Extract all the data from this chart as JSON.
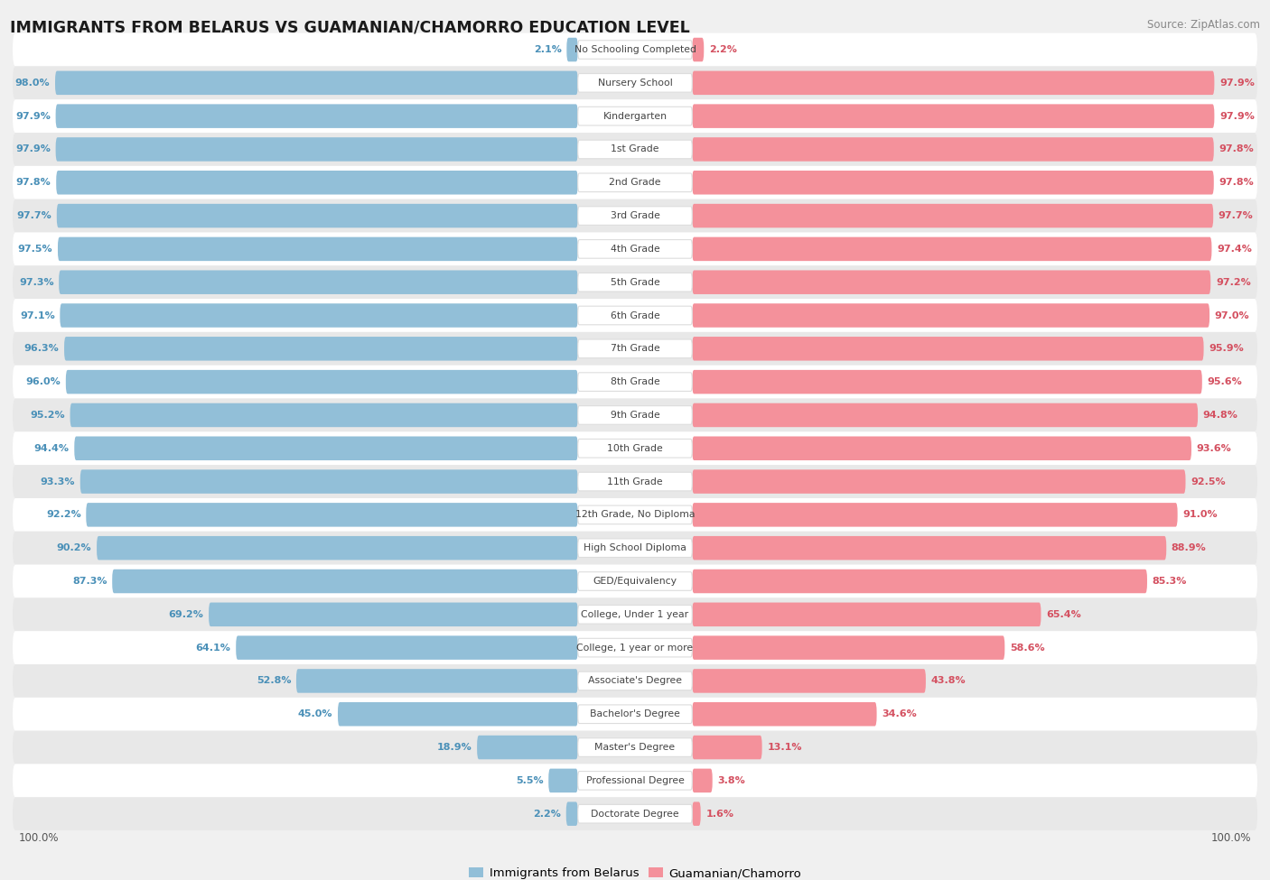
{
  "title": "IMMIGRANTS FROM BELARUS VS GUAMANIAN/CHAMORRO EDUCATION LEVEL",
  "source": "Source: ZipAtlas.com",
  "categories": [
    "No Schooling Completed",
    "Nursery School",
    "Kindergarten",
    "1st Grade",
    "2nd Grade",
    "3rd Grade",
    "4th Grade",
    "5th Grade",
    "6th Grade",
    "7th Grade",
    "8th Grade",
    "9th Grade",
    "10th Grade",
    "11th Grade",
    "12th Grade, No Diploma",
    "High School Diploma",
    "GED/Equivalency",
    "College, Under 1 year",
    "College, 1 year or more",
    "Associate's Degree",
    "Bachelor's Degree",
    "Master's Degree",
    "Professional Degree",
    "Doctorate Degree"
  ],
  "belarus_values": [
    2.1,
    98.0,
    97.9,
    97.9,
    97.8,
    97.7,
    97.5,
    97.3,
    97.1,
    96.3,
    96.0,
    95.2,
    94.4,
    93.3,
    92.2,
    90.2,
    87.3,
    69.2,
    64.1,
    52.8,
    45.0,
    18.9,
    5.5,
    2.2
  ],
  "guam_values": [
    2.2,
    97.9,
    97.9,
    97.8,
    97.8,
    97.7,
    97.4,
    97.2,
    97.0,
    95.9,
    95.6,
    94.8,
    93.6,
    92.5,
    91.0,
    88.9,
    85.3,
    65.4,
    58.6,
    43.8,
    34.6,
    13.1,
    3.8,
    1.6
  ],
  "belarus_color": "#92bfd8",
  "guam_color": "#f4919b",
  "bg_color": "#f0f0f0",
  "row_white": "#ffffff",
  "row_gray": "#e8e8e8",
  "label_color_dark": "#444444",
  "belarus_label_color": "#4a90b8",
  "guam_label_color": "#d45060",
  "title_color": "#1a1a1a",
  "legend_belarus": "Immigrants from Belarus",
  "legend_guam": "Guamanian/Chamorro",
  "figsize": [
    14.06,
    9.75
  ],
  "dpi": 100
}
